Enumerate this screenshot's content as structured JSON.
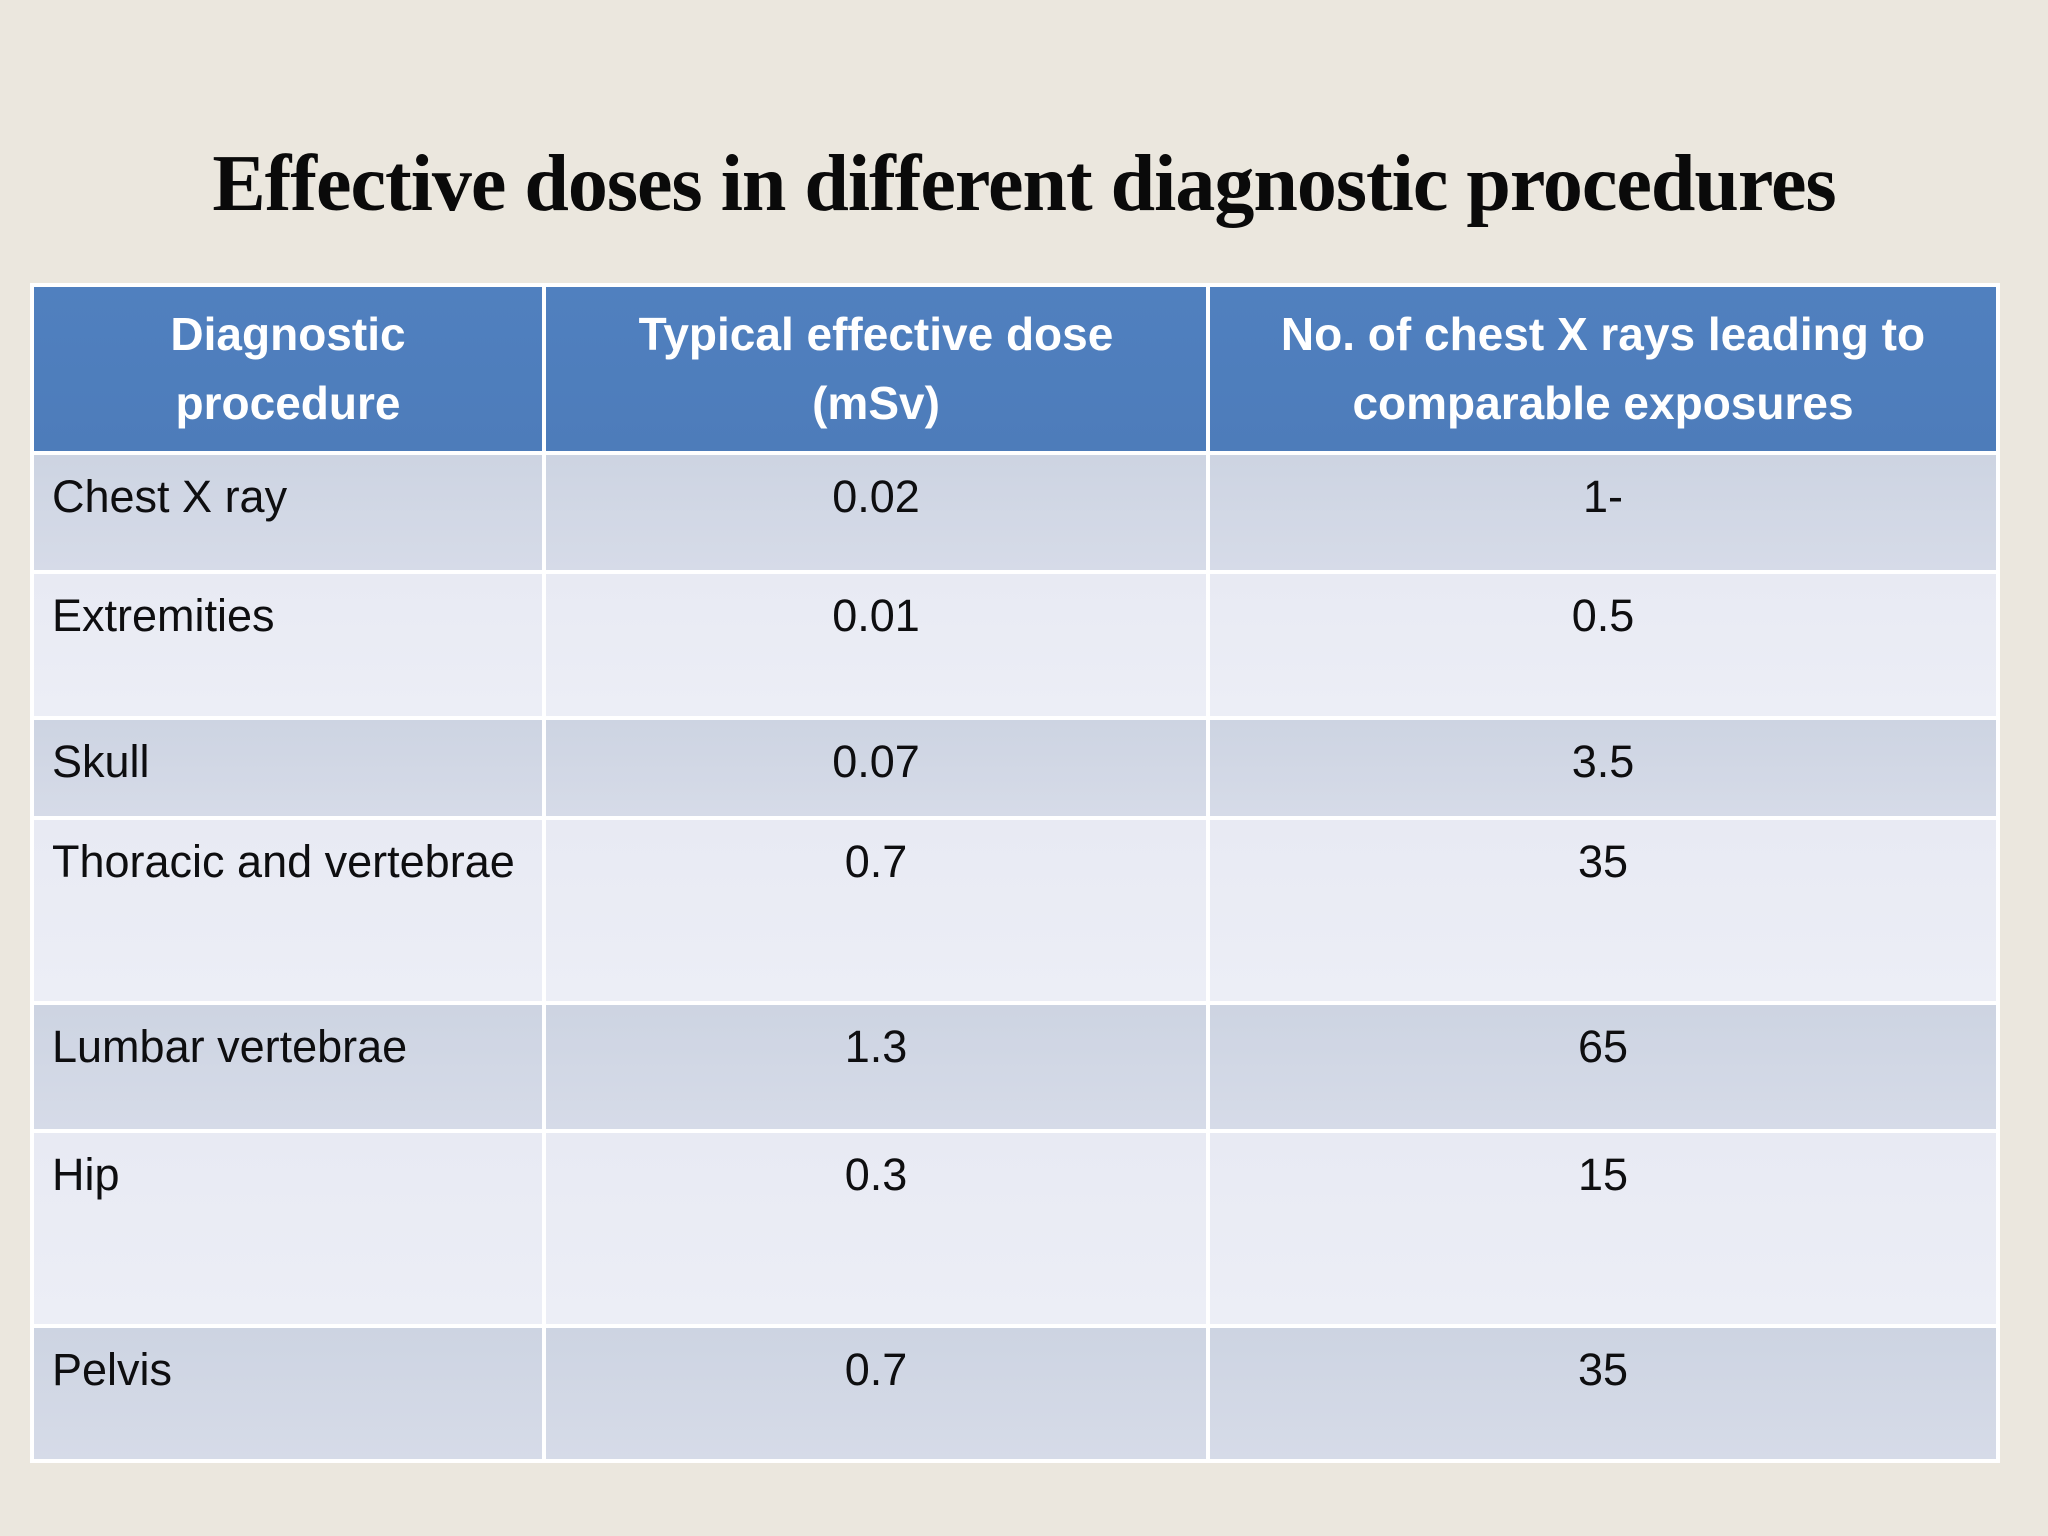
{
  "slide": {
    "title": "Effective doses in different diagnostic procedures",
    "background_color": "#ebe7de"
  },
  "table": {
    "header_bg_color": "#4d7cba",
    "header_text_color": "#ffffff",
    "row_color_dark": "#d1d7e4",
    "row_color_light": "#e9ebf4",
    "columns": [
      {
        "line1": "Diagnostic",
        "line2": "procedure"
      },
      {
        "line1": "Typical effective dose",
        "line2": "(mSv)"
      },
      {
        "line1": "No. of chest X rays leading  to",
        "line2": "comparable exposures"
      }
    ],
    "rows": [
      {
        "procedure": "Chest X ray",
        "dose_msv": "0.02",
        "chest_xray_equiv": "1-"
      },
      {
        "procedure": "Extremities",
        "dose_msv": "0.01",
        "chest_xray_equiv": "0.5"
      },
      {
        "procedure": "Skull",
        "dose_msv": "0.07",
        "chest_xray_equiv": "3.5"
      },
      {
        "procedure": "Thoracic and vertebrae",
        "dose_msv": "0.7",
        "chest_xray_equiv": "35"
      },
      {
        "procedure": "Lumbar vertebrae",
        "dose_msv": "1.3",
        "chest_xray_equiv": "65"
      },
      {
        "procedure": "Hip",
        "dose_msv": "0.3",
        "chest_xray_equiv": "15"
      },
      {
        "procedure": "Pelvis",
        "dose_msv": "0.7",
        "chest_xray_equiv": "35"
      }
    ]
  }
}
